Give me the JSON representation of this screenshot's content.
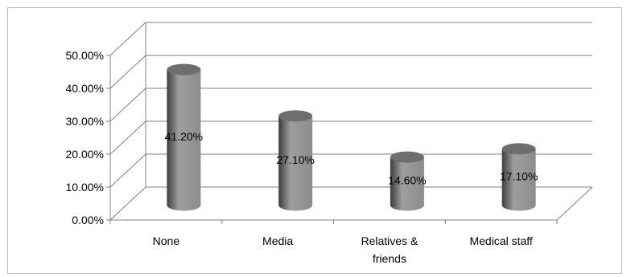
{
  "chart_data": {
    "type": "bar",
    "style": "3d-cylinder",
    "categories": [
      "None",
      "Media",
      "Relatives & friends",
      "Medical staff"
    ],
    "category_label_lines": [
      [
        "None"
      ],
      [
        "Media"
      ],
      [
        "Relatives &",
        "friends"
      ],
      [
        "Medical staff"
      ]
    ],
    "values": [
      41.2,
      27.1,
      14.6,
      17.1
    ],
    "data_labels": [
      "41.20%",
      "27.10%",
      "14.60%",
      "17.10%"
    ],
    "ylim": [
      0,
      50
    ],
    "yticks": [
      0,
      10,
      20,
      30,
      40,
      50
    ],
    "ytick_labels": [
      "0.00%",
      "10.00%",
      "20.00%",
      "30.00%",
      "40.00%",
      "50.00%"
    ],
    "grid": true,
    "legend": "none",
    "title": "",
    "xlabel": "",
    "ylabel": "",
    "colors": {
      "bar_dark": "#3d3d3d",
      "bar_mid": "#8c8c8c",
      "bar_light": "#9e9e9e",
      "bar_top": "#6e6e6e",
      "grid": "#808080",
      "axis": "#808080"
    }
  }
}
